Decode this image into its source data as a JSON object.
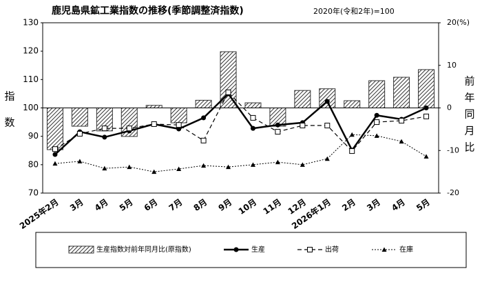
{
  "chart_data": {
    "type": "combo",
    "title": "鹿児島県鉱工業指数の推移(季節調整済指数)",
    "subtitle": "2020年(令和2年)=100",
    "y_label": "指数",
    "y2_label": "前年同月比",
    "categories": [
      "2025年2月",
      "3月",
      "4月",
      "5月",
      "6月",
      "7月",
      "8月",
      "9月",
      "10月",
      "11月",
      "12月",
      "2026年1月",
      "2月",
      "3月",
      "4月",
      "5月"
    ],
    "ylim": [
      70,
      130
    ],
    "yticks": [
      70,
      80,
      90,
      100,
      110,
      120,
      130
    ],
    "y2lim": [
      -20,
      20
    ],
    "y2ticks": [
      {
        "value": 20,
        "label": "20(%)"
      },
      10,
      0,
      -10,
      -20
    ],
    "series": [
      {
        "name": "生産指数対前年同月比(原指数)",
        "type": "bar",
        "axis": "y2",
        "color": "#333333",
        "values": [
          -9.8,
          -4.3,
          -5.4,
          -6.7,
          0.6,
          -3.5,
          1.8,
          13.2,
          1.2,
          -4.3,
          4.1,
          4.5,
          1.7,
          6.4,
          7.2,
          9.0
        ]
      },
      {
        "name": "生産",
        "type": "line",
        "color": "#000000",
        "line": "solid",
        "marker": "circle",
        "values": [
          83.6,
          91.6,
          89.7,
          91.9,
          94.3,
          92.6,
          96.5,
          105.0,
          92.8,
          94.0,
          94.8,
          102.3,
          85.1,
          97.4,
          96.0,
          100.0
        ]
      },
      {
        "name": "出荷",
        "type": "line",
        "color": "#000000",
        "line": "dashed",
        "marker": "square",
        "values": [
          85.5,
          90.9,
          92.8,
          92.8,
          94.3,
          94.0,
          88.5,
          105.5,
          96.5,
          91.6,
          93.8,
          93.8,
          84.8,
          95.0,
          95.5,
          97.0
        ]
      },
      {
        "name": "在庫",
        "type": "line",
        "color": "#000000",
        "line": "dotted",
        "marker": "triangle",
        "values": [
          80.4,
          81.2,
          78.7,
          79.2,
          77.5,
          78.5,
          79.7,
          79.2,
          80.0,
          80.9,
          80.0,
          82.1,
          90.6,
          90.2,
          88.2,
          82.9
        ]
      }
    ]
  }
}
